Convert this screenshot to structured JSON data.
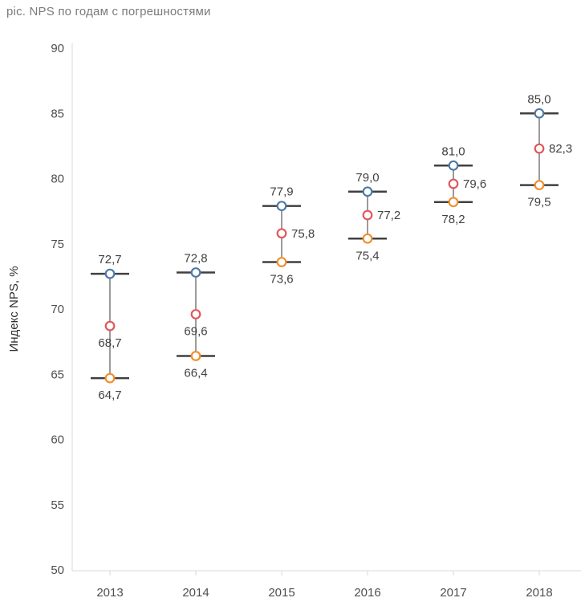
{
  "title": "pic. NPS по годам с погрешностями",
  "chart_data": {
    "type": "scatter",
    "title": "pic. NPS по годам с погрешностями",
    "xlabel": "",
    "ylabel": "Индекс NPS, %",
    "ylim": [
      50,
      90
    ],
    "yticks": [
      50,
      55,
      60,
      65,
      70,
      75,
      80,
      85,
      90
    ],
    "categories": [
      "2013",
      "2014",
      "2015",
      "2016",
      "2017",
      "2018"
    ],
    "grid": false,
    "legend": false,
    "error_bars": true,
    "series": [
      {
        "name": "upper-bound",
        "color": "#4e79a7",
        "values": [
          72.7,
          72.8,
          77.9,
          79.0,
          81.0,
          85.0
        ],
        "labels": [
          "72,7",
          "72,8",
          "77,9",
          "79,0",
          "81,0",
          "85,0"
        ],
        "label_position": [
          "above",
          "above",
          "above",
          "above",
          "above",
          "above"
        ]
      },
      {
        "name": "nps-midpoint",
        "color": "#e15759",
        "values": [
          68.7,
          69.6,
          75.8,
          77.2,
          79.6,
          82.3
        ],
        "labels": [
          "68,7",
          "69,6",
          "75,8",
          "77,2",
          "79,6",
          "82,3"
        ],
        "label_position": [
          "below",
          "below",
          "right",
          "right",
          "right",
          "right"
        ]
      },
      {
        "name": "lower-bound",
        "color": "#f28e2b",
        "values": [
          64.7,
          66.4,
          73.6,
          75.4,
          78.2,
          79.5
        ],
        "labels": [
          "64,7",
          "66,4",
          "73,6",
          "75,4",
          "78,2",
          "79,5"
        ],
        "label_position": [
          "below",
          "below",
          "below",
          "below",
          "below",
          "below"
        ]
      }
    ],
    "colors": {
      "axis_line": "#d8d8d8",
      "tick_label": "#4f4f4f",
      "data_label": "#414141",
      "whisker": "#707070",
      "cap": "#404040",
      "title": "#7b7b7b"
    }
  }
}
